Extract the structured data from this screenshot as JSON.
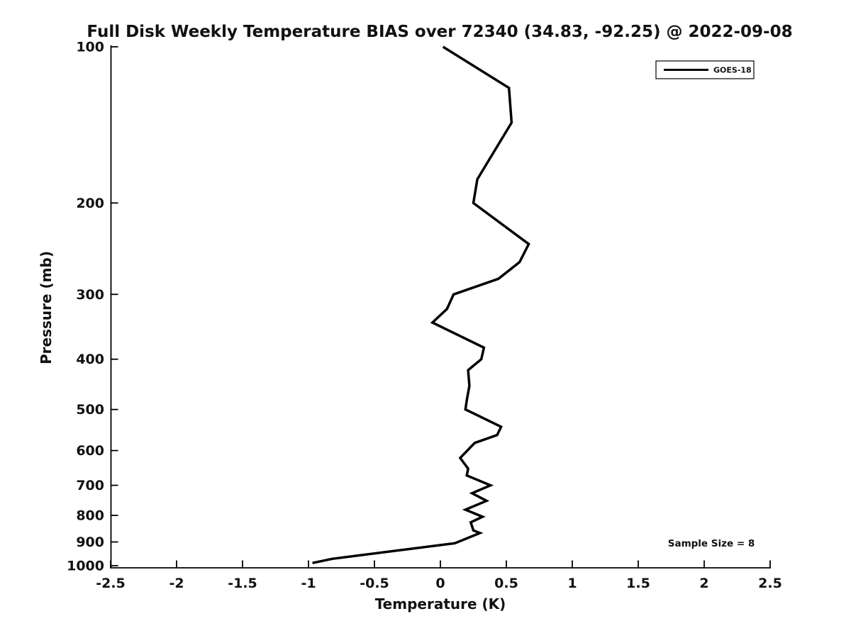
{
  "title": "Full Disk Weekly Temperature BIAS over 72340 (34.83, -92.25) @ 2022-09-08",
  "annotation": "Sample Size = 8",
  "legend": {
    "label": "GOES-18",
    "line_color": "#000000"
  },
  "colors": {
    "background": "#ffffff",
    "axis": "#000000",
    "text": "#111111",
    "series": "#000000"
  },
  "chart_data": {
    "type": "line",
    "title": "Full Disk Weekly Temperature BIAS over 72340 (34.83, -92.25) @ 2022-09-08",
    "xlabel": "Temperature (K)",
    "ylabel": "Pressure (mb)",
    "xlim": [
      -2.5,
      2.5
    ],
    "ylim": [
      100,
      1000
    ],
    "y_scale": "log",
    "y_inverted": true,
    "grid": false,
    "legend_position": "upper right",
    "x_ticks": [
      "-2.5",
      "-2",
      "-1.5",
      "-1",
      "-0.5",
      "0",
      "0.5",
      "1",
      "1.5",
      "2",
      "2.5"
    ],
    "y_ticks": [
      "100",
      "200",
      "300",
      "400",
      "500",
      "600",
      "700",
      "800",
      "900",
      "1000"
    ],
    "annotations": [
      "Sample Size = 8"
    ],
    "series": [
      {
        "name": "GOES-18",
        "color": "#000000",
        "points_format": [
          "pressure_mb",
          "bias_k"
        ],
        "points": [
          [
            100,
            0.02
          ],
          [
            120,
            0.52
          ],
          [
            140,
            0.54
          ],
          [
            180,
            0.28
          ],
          [
            200,
            0.25
          ],
          [
            240,
            0.67
          ],
          [
            260,
            0.6
          ],
          [
            280,
            0.44
          ],
          [
            300,
            0.1
          ],
          [
            320,
            0.05
          ],
          [
            340,
            -0.06
          ],
          [
            380,
            0.33
          ],
          [
            400,
            0.31
          ],
          [
            420,
            0.21
          ],
          [
            450,
            0.22
          ],
          [
            480,
            0.2
          ],
          [
            500,
            0.19
          ],
          [
            540,
            0.46
          ],
          [
            560,
            0.43
          ],
          [
            580,
            0.26
          ],
          [
            620,
            0.15
          ],
          [
            650,
            0.21
          ],
          [
            670,
            0.2
          ],
          [
            700,
            0.38
          ],
          [
            725,
            0.24
          ],
          [
            750,
            0.35
          ],
          [
            780,
            0.19
          ],
          [
            805,
            0.32
          ],
          [
            825,
            0.23
          ],
          [
            855,
            0.25
          ],
          [
            865,
            0.3
          ],
          [
            905,
            0.11
          ],
          [
            970,
            -0.82
          ],
          [
            988,
            -0.97
          ]
        ]
      }
    ]
  }
}
